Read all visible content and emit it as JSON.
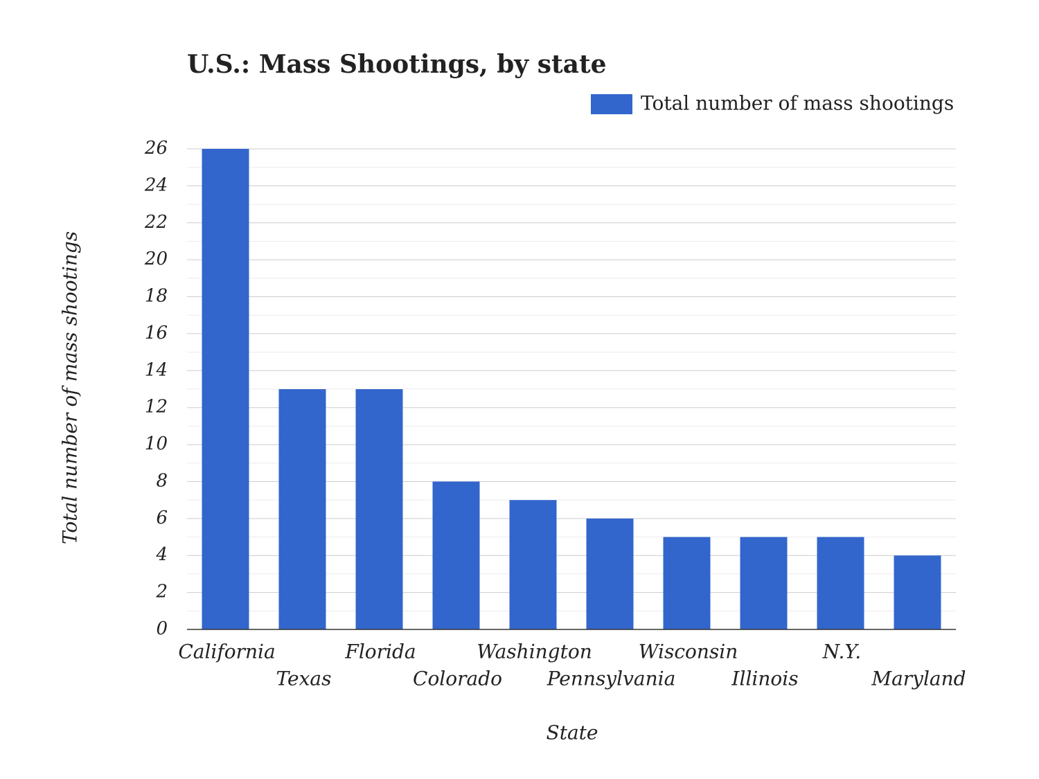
{
  "chart_data": {
    "type": "bar",
    "title": "U.S.: Mass Shootings, by state",
    "x_label": "State",
    "y_label": "Total number of mass shootings",
    "categories": [
      "California",
      "Texas",
      "Florida",
      "Colorado",
      "Washington",
      "Pennsylvania",
      "Wisconsin",
      "Illinois",
      "N.Y.",
      "Maryland"
    ],
    "series": [
      {
        "name": "Total number of mass shootings",
        "color": "#3366cc",
        "values": [
          26,
          13,
          13,
          8,
          7,
          6,
          5,
          5,
          5,
          4
        ]
      }
    ],
    "ylim": [
      0,
      26
    ],
    "yticks": [
      0,
      2,
      4,
      6,
      8,
      10,
      12,
      14,
      16,
      18,
      20,
      22,
      24,
      26
    ],
    "grid": true
  }
}
